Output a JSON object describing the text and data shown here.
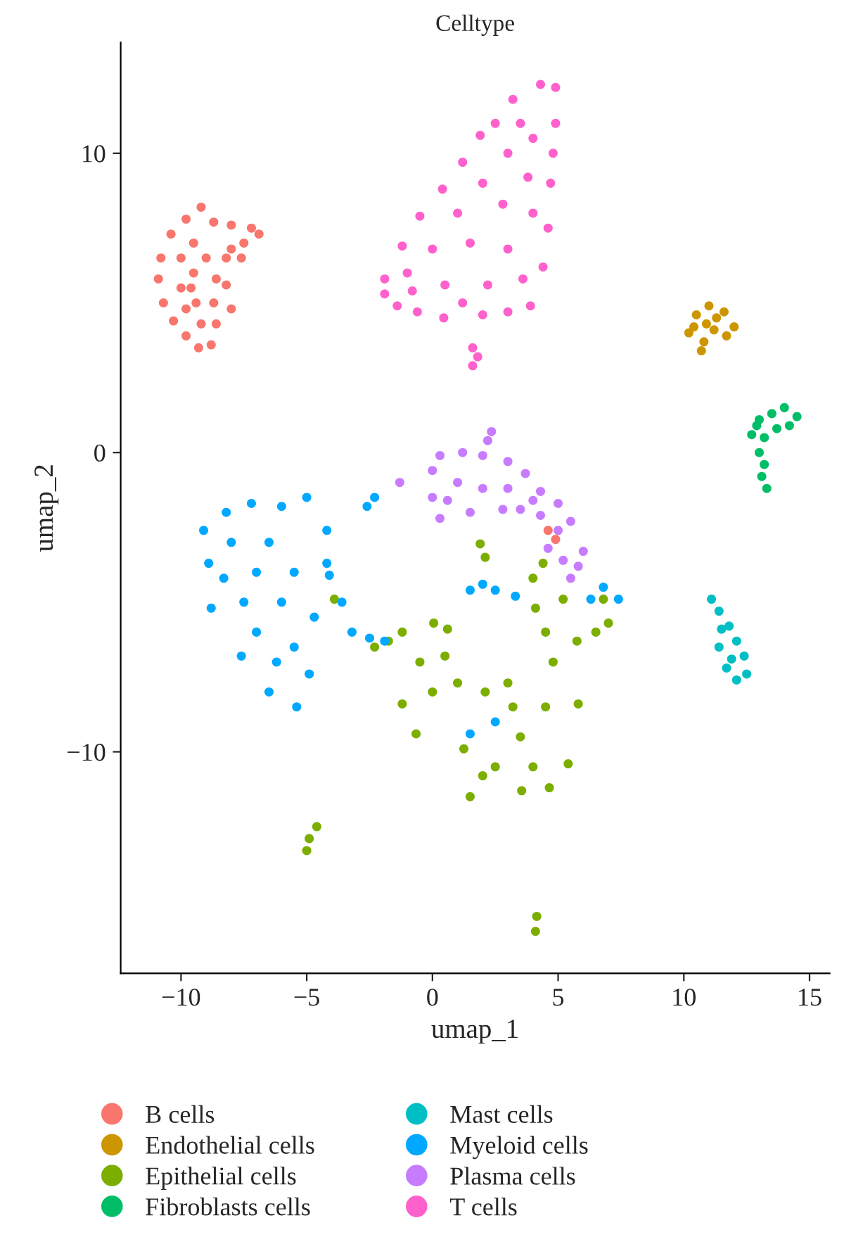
{
  "chart_data": {
    "type": "scatter",
    "title": "Celltype",
    "xlabel": "umap_1",
    "ylabel": "umap_2",
    "xlim": [
      -12.4,
      15.8
    ],
    "ylim": [
      -17.4,
      13.7
    ],
    "xticks": [
      -10,
      -5,
      0,
      5,
      10,
      15
    ],
    "yticks": [
      -10,
      0,
      10
    ],
    "grid": false,
    "legend": "bottom",
    "marker": "circle",
    "series": [
      {
        "name": "B cells",
        "color": "#F8766D",
        "x": [
          -9.2,
          -9.8,
          -10.4,
          -10.8,
          -10.9,
          -10.7,
          -10.3,
          -9.8,
          -9.3,
          -8.8,
          -8.6,
          -8.7,
          -8.6,
          -8.2,
          -7.5,
          -6.9,
          -7.2,
          -8.0,
          -8.7,
          -9.5,
          -10.0,
          -9.5,
          -10.0,
          -9.4,
          -9.8,
          -9.2,
          -9.0,
          -9.6,
          -8.0,
          -7.6,
          -8.2,
          -8.0,
          4.6,
          4.9
        ],
        "values": [
          8.2,
          7.8,
          7.3,
          6.5,
          5.8,
          5.0,
          4.4,
          3.9,
          3.5,
          3.6,
          4.3,
          5.0,
          5.8,
          6.5,
          7.0,
          7.3,
          7.5,
          7.6,
          7.7,
          7.0,
          6.5,
          6.0,
          5.5,
          5.0,
          4.8,
          4.3,
          6.5,
          5.5,
          6.8,
          6.5,
          5.6,
          4.8,
          -2.6,
          -2.9
        ]
      },
      {
        "name": "Endothelial cells",
        "color": "#CD9600",
        "x": [
          10.2,
          10.5,
          11.0,
          11.6,
          12.0,
          11.7,
          11.2,
          10.8,
          10.7,
          10.4,
          11.3,
          10.9
        ],
        "values": [
          4.0,
          4.6,
          4.9,
          4.7,
          4.2,
          3.9,
          4.1,
          3.7,
          3.4,
          4.2,
          4.5,
          4.3
        ]
      },
      {
        "name": "Epithelial cells",
        "color": "#7CAE00",
        "x": [
          -1.75,
          -1.2,
          0.05,
          0.6,
          1.0,
          2.1,
          -0.65,
          -1.2,
          -0.5,
          0.5,
          0.0,
          -2.3,
          3.0,
          4.1,
          5.2,
          5.75,
          5.8,
          5.4,
          3.55,
          1.5,
          1.25,
          2.5,
          3.5,
          4.5,
          4.8,
          4.5,
          3.2,
          4.0,
          2.0,
          4.4,
          4.0,
          1.9,
          2.1,
          6.8,
          7.0,
          6.5,
          4.65,
          -4.9,
          -5.0,
          -4.6,
          4.15,
          4.1,
          -3.9
        ],
        "values": [
          -6.3,
          -6.0,
          -5.7,
          -5.9,
          -7.7,
          -8.0,
          -9.4,
          -8.4,
          -7.0,
          -6.8,
          -8.0,
          -6.5,
          -7.7,
          -5.2,
          -4.9,
          -6.3,
          -8.4,
          -10.4,
          -11.3,
          -11.5,
          -9.9,
          -10.5,
          -9.5,
          -8.5,
          -7.0,
          -6.0,
          -8.5,
          -10.5,
          -10.8,
          -3.7,
          -4.2,
          -3.05,
          -3.5,
          -4.9,
          -5.7,
          -6.0,
          -11.2,
          -12.9,
          -13.3,
          -12.5,
          -15.5,
          -16.0,
          -4.9
        ]
      },
      {
        "name": "Fibroblasts cells",
        "color": "#00BE67",
        "x": [
          12.7,
          13.0,
          13.5,
          14.0,
          14.5,
          14.2,
          13.7,
          13.2,
          13.0,
          13.2,
          13.1,
          13.3,
          12.9
        ],
        "values": [
          0.6,
          1.1,
          1.3,
          1.5,
          1.2,
          0.9,
          0.8,
          0.5,
          0.0,
          -0.4,
          -0.8,
          -1.2,
          0.9
        ]
      },
      {
        "name": "Mast cells",
        "color": "#00BFC4",
        "x": [
          11.1,
          11.4,
          11.5,
          11.4,
          11.7,
          12.1,
          12.5,
          12.4,
          12.1,
          11.8,
          11.9
        ],
        "values": [
          -4.9,
          -5.3,
          -5.9,
          -6.5,
          -7.2,
          -7.6,
          -7.4,
          -6.8,
          -6.3,
          -5.8,
          -6.9
        ]
      },
      {
        "name": "Myeloid cells",
        "color": "#00A9FF",
        "x": [
          -9.1,
          -8.2,
          -7.2,
          -6.0,
          -5.0,
          -4.2,
          -4.2,
          -4.7,
          -4.9,
          -5.4,
          -6.5,
          -7.6,
          -8.8,
          -8.9,
          -8.0,
          -7.0,
          -6.0,
          -7.5,
          -5.5,
          -6.2,
          -8.3,
          -6.5,
          -5.5,
          -7.0,
          -4.1,
          -3.6,
          -3.2,
          -2.5,
          -1.9,
          -2.3,
          -2.6,
          1.5,
          2.5,
          3.3,
          2.0,
          6.3,
          7.4,
          6.8,
          2.5,
          1.5
        ],
        "values": [
          -2.6,
          -2.0,
          -1.7,
          -1.8,
          -1.5,
          -2.6,
          -3.7,
          -5.5,
          -7.4,
          -8.5,
          -8.0,
          -6.8,
          -5.2,
          -3.7,
          -3.0,
          -4.0,
          -5.0,
          -5.0,
          -6.5,
          -7.0,
          -4.2,
          -3.0,
          -4.0,
          -6.0,
          -4.1,
          -5.0,
          -6.0,
          -6.2,
          -6.3,
          -1.5,
          -1.8,
          -4.6,
          -4.6,
          -4.8,
          -4.4,
          -4.9,
          -4.9,
          -4.5,
          -9.0,
          -9.4
        ]
      },
      {
        "name": "Plasma cells",
        "color": "#C77CFF",
        "x": [
          0.0,
          0.3,
          1.2,
          2.0,
          2.35,
          2.2,
          3.0,
          3.7,
          4.3,
          5.0,
          5.5,
          6.0,
          5.8,
          5.5,
          5.2,
          4.6,
          4.3,
          3.5,
          2.8,
          1.5,
          0.3,
          0.0,
          1.0,
          2.0,
          3.0,
          4.0,
          5.0,
          0.6,
          -1.3
        ],
        "values": [
          -0.6,
          -0.1,
          0.0,
          -0.1,
          0.7,
          0.4,
          -0.3,
          -0.7,
          -1.3,
          -1.7,
          -2.3,
          -3.3,
          -3.8,
          -4.2,
          -3.6,
          -3.2,
          -2.1,
          -1.9,
          -1.9,
          -2.0,
          -2.2,
          -1.5,
          -1.0,
          -1.2,
          -1.2,
          -1.6,
          -2.6,
          -1.6,
          -1.0
        ]
      },
      {
        "name": "T cells",
        "color": "#FF61CC",
        "x": [
          4.3,
          4.9,
          3.2,
          4.9,
          2.5,
          1.9,
          4.8,
          1.2,
          0.4,
          4.7,
          -0.5,
          -1.2,
          4.6,
          -1.9,
          -1.9,
          -1.4,
          4.4,
          3.9,
          0.45,
          2.0,
          3.0,
          -0.6,
          1.6,
          1.6,
          1.8,
          3.5,
          4.0,
          3.0,
          3.8,
          2.0,
          2.8,
          1.0,
          4.0,
          0.0,
          1.5,
          3.0,
          -1.0,
          0.5,
          2.2,
          3.6,
          1.2,
          -0.8
        ],
        "values": [
          12.3,
          12.2,
          11.8,
          11.0,
          11.0,
          10.6,
          10.0,
          9.7,
          8.8,
          9.0,
          7.9,
          6.9,
          7.5,
          5.8,
          5.3,
          4.9,
          6.2,
          4.9,
          4.5,
          4.6,
          4.7,
          4.7,
          3.5,
          2.9,
          3.2,
          11.0,
          10.5,
          10.0,
          9.2,
          9.0,
          8.3,
          8.0,
          8.0,
          6.8,
          7.0,
          6.8,
          6.0,
          5.6,
          5.6,
          5.8,
          5.0,
          5.4
        ]
      }
    ]
  }
}
